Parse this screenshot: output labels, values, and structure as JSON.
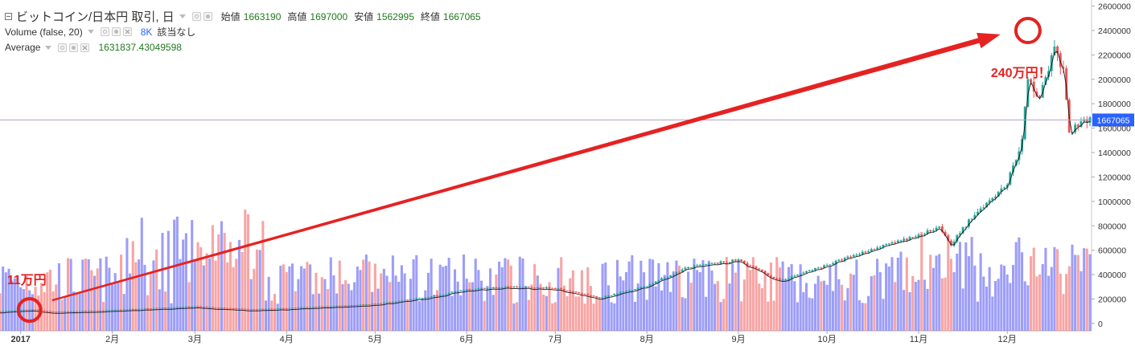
{
  "chart_data": {
    "type": "candlestick",
    "title": "ビットコイン/日本円 取引, 日",
    "ohlc_labels": {
      "open": "始値",
      "high": "高値",
      "low": "安値",
      "close": "終値"
    },
    "ohlc_values": {
      "open": "1663190",
      "high": "1697000",
      "low": "1562995",
      "close": "1667065"
    },
    "volume_label": "Volume (false, 20)",
    "volume_value": "8K",
    "volume_note": "該当なし",
    "average_label": "Average",
    "average_value": "1631837.43049598",
    "last_price": 1667065,
    "last_price_label": "1667065",
    "ylim": [
      -60000,
      2650000
    ],
    "yticks": [
      0,
      200000,
      400000,
      600000,
      800000,
      1000000,
      1200000,
      1400000,
      1600000,
      1800000,
      2000000,
      2200000,
      2400000,
      2600000
    ],
    "ytick_labels": [
      "0",
      "200000",
      "400000",
      "600000",
      "800000",
      "1000000",
      "1200000",
      "1400000",
      "1600000",
      "1800000",
      "2000000",
      "2200000",
      "2400000",
      "2600000"
    ],
    "xlim": [
      "2016-12-25",
      "2017-12-29"
    ],
    "xticks": [
      {
        "date": "2017-01-01",
        "label": "2017"
      },
      {
        "date": "2017-02-01",
        "label": "2月"
      },
      {
        "date": "2017-03-01",
        "label": "3月"
      },
      {
        "date": "2017-04-01",
        "label": "4月"
      },
      {
        "date": "2017-05-01",
        "label": "5月"
      },
      {
        "date": "2017-06-01",
        "label": "6月"
      },
      {
        "date": "2017-07-01",
        "label": "7月"
      },
      {
        "date": "2017-08-01",
        "label": "8月"
      },
      {
        "date": "2017-09-01",
        "label": "9月"
      },
      {
        "date": "2017-10-01",
        "label": "10月"
      },
      {
        "date": "2017-11-01",
        "label": "11月"
      },
      {
        "date": "2017-12-01",
        "label": "12月"
      }
    ],
    "price_series": [
      {
        "date": "2016-12-25",
        "value": 100000
      },
      {
        "date": "2017-01-05",
        "value": 115000
      },
      {
        "date": "2017-01-12",
        "value": 95000
      },
      {
        "date": "2017-02-01",
        "value": 110000
      },
      {
        "date": "2017-03-01",
        "value": 140000
      },
      {
        "date": "2017-03-20",
        "value": 115000
      },
      {
        "date": "2017-04-01",
        "value": 125000
      },
      {
        "date": "2017-05-01",
        "value": 160000
      },
      {
        "date": "2017-05-20",
        "value": 220000
      },
      {
        "date": "2017-06-01",
        "value": 280000
      },
      {
        "date": "2017-06-15",
        "value": 300000
      },
      {
        "date": "2017-07-01",
        "value": 290000
      },
      {
        "date": "2017-07-16",
        "value": 210000
      },
      {
        "date": "2017-08-01",
        "value": 310000
      },
      {
        "date": "2017-08-15",
        "value": 460000
      },
      {
        "date": "2017-09-01",
        "value": 520000
      },
      {
        "date": "2017-09-15",
        "value": 350000
      },
      {
        "date": "2017-10-01",
        "value": 480000
      },
      {
        "date": "2017-10-15",
        "value": 600000
      },
      {
        "date": "2017-11-01",
        "value": 720000
      },
      {
        "date": "2017-11-08",
        "value": 800000
      },
      {
        "date": "2017-11-12",
        "value": 650000
      },
      {
        "date": "2017-11-20",
        "value": 900000
      },
      {
        "date": "2017-12-01",
        "value": 1150000
      },
      {
        "date": "2017-12-06",
        "value": 1500000
      },
      {
        "date": "2017-12-08",
        "value": 2000000
      },
      {
        "date": "2017-12-12",
        "value": 1850000
      },
      {
        "date": "2017-12-17",
        "value": 2250000
      },
      {
        "date": "2017-12-20",
        "value": 2050000
      },
      {
        "date": "2017-12-22",
        "value": 1550000
      },
      {
        "date": "2017-12-26",
        "value": 1667065
      }
    ],
    "annotations": [
      {
        "text": "11万円",
        "date": "2017-01-04",
        "value": 110000
      },
      {
        "text": "240万円！",
        "date": "2017-12-08",
        "value": 2400000
      }
    ]
  },
  "colors": {
    "up": "#26a69a",
    "down": "#ef5350",
    "volume_up": "#8c8cf7",
    "volume_down": "#f79494",
    "annotation": "#e52222",
    "last_price_bg": "#2962ff",
    "price_line": "#b59ec0",
    "average_line": "#000000"
  }
}
